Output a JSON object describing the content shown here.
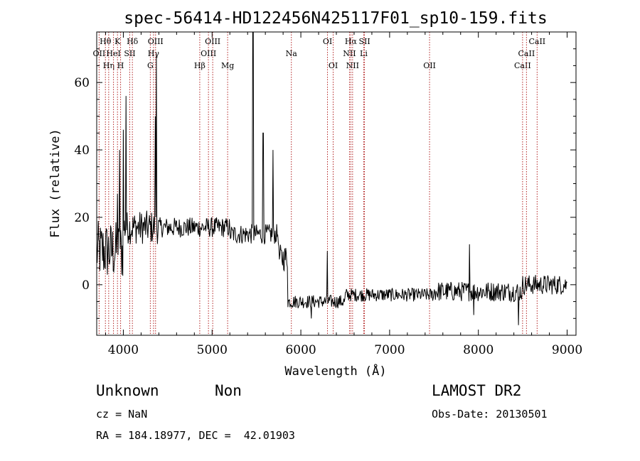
{
  "chart_data": {
    "type": "line",
    "title": "spec-56414-HD122456N425117F01_sp10-159.fits",
    "xlabel": "Wavelength (Å)",
    "ylabel": "Flux (relative)",
    "xlim": [
      3700,
      9100
    ],
    "ylim": [
      -15,
      75
    ],
    "x_ticks": [
      4000,
      5000,
      6000,
      7000,
      8000,
      9000
    ],
    "y_ticks": [
      0,
      20,
      40,
      60
    ],
    "grid": false,
    "line_color": "#000000",
    "marker_color": "#b22222",
    "spectral_lines": [
      {
        "x": 3727,
        "label": "OII",
        "row": 1
      },
      {
        "x": 3798,
        "label": "Hθ",
        "row": 0
      },
      {
        "x": 3835,
        "label": "Hη",
        "row": 2
      },
      {
        "x": 3889,
        "label": "HeI",
        "row": 1
      },
      {
        "x": 3934,
        "label": "K",
        "row": 0
      },
      {
        "x": 3969,
        "label": "H",
        "row": 2
      },
      {
        "x": 4072,
        "label": "SII",
        "row": 1
      },
      {
        "x": 4102,
        "label": "Hδ",
        "row": 0
      },
      {
        "x": 4304,
        "label": "G",
        "row": 2
      },
      {
        "x": 4340,
        "label": "Hγ",
        "row": 1
      },
      {
        "x": 4363,
        "label": "OIII",
        "row": 0
      },
      {
        "x": 4861,
        "label": "Hβ",
        "row": 2
      },
      {
        "x": 4959,
        "label": "OIII",
        "row": 1
      },
      {
        "x": 5007,
        "label": "OIII",
        "row": 0
      },
      {
        "x": 5175,
        "label": "Mg",
        "row": 2
      },
      {
        "x": 5893,
        "label": "Na",
        "row": 1
      },
      {
        "x": 6300,
        "label": "OI",
        "row": 0
      },
      {
        "x": 6364,
        "label": "OI",
        "row": 2
      },
      {
        "x": 6548,
        "label": "NII",
        "row": 1
      },
      {
        "x": 6563,
        "label": "Hα",
        "row": 0
      },
      {
        "x": 6583,
        "label": "NII",
        "row": 2
      },
      {
        "x": 6708,
        "label": "Li",
        "row": 1
      },
      {
        "x": 6717,
        "label": "SII",
        "row": 0
      },
      {
        "x": 7450,
        "label": "OII",
        "row": 2
      },
      {
        "x": 8498,
        "label": "CaII",
        "row": 2
      },
      {
        "x": 8542,
        "label": "CaII",
        "row": 1
      },
      {
        "x": 8662,
        "label": "CaII",
        "row": 0
      }
    ],
    "spectrum": {
      "segments": [
        {
          "from": 3700,
          "to": 4000,
          "level": 10,
          "noise": 9
        },
        {
          "from": 4000,
          "to": 4400,
          "level": 17,
          "noise": 5
        },
        {
          "from": 4400,
          "to": 5200,
          "level": 17,
          "noise": 3
        },
        {
          "from": 5200,
          "to": 5750,
          "level": 15,
          "noise": 3
        },
        {
          "from": 5750,
          "to": 5850,
          "level": 8,
          "noise": 4
        },
        {
          "from": 5850,
          "to": 6500,
          "level": -5,
          "noise": 2
        },
        {
          "from": 6500,
          "to": 7500,
          "level": -3,
          "noise": 2
        },
        {
          "from": 7500,
          "to": 8500,
          "level": -2,
          "noise": 3
        },
        {
          "from": 8500,
          "to": 9000,
          "level": 0,
          "noise": 3
        }
      ],
      "spikes": [
        {
          "x": 3935,
          "y": 27
        },
        {
          "x": 4030,
          "y": 56
        },
        {
          "x": 4000,
          "y": 46
        },
        {
          "x": 3960,
          "y": 40
        },
        {
          "x": 4370,
          "y": 68
        },
        {
          "x": 4360,
          "y": 50
        },
        {
          "x": 5461,
          "y": 75
        },
        {
          "x": 5575,
          "y": 45
        },
        {
          "x": 5685,
          "y": 40
        },
        {
          "x": 6300,
          "y": 10
        },
        {
          "x": 7900,
          "y": 12
        },
        {
          "x": 8450,
          "y": -12
        },
        {
          "x": 6120,
          "y": -10
        },
        {
          "x": 7950,
          "y": -9
        }
      ]
    }
  },
  "info": {
    "object_class": "Unknown",
    "subclass": "Non",
    "survey": "LAMOST DR2",
    "redshift": "cz = NaN",
    "obs_date": "Obs-Date: 20130501",
    "coords": "RA = 184.18977, DEC =  42.01903"
  }
}
